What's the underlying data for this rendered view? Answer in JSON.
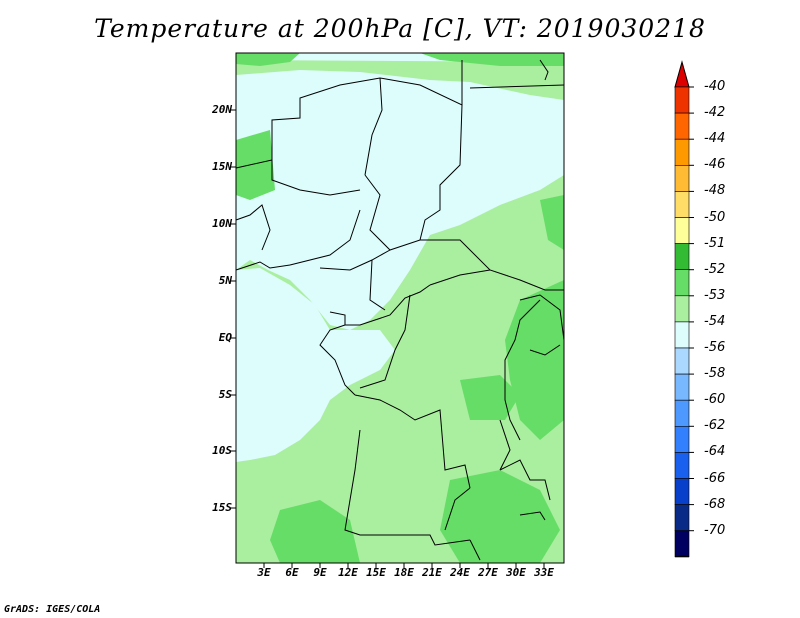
{
  "title": "Temperature at 200hPa [C], VT: 2019030218",
  "footer": "GrADS: IGES/COLA",
  "lat_ticks": [
    "20N",
    "15N",
    "10N",
    "5N",
    "EQ",
    "5S",
    "10S",
    "15S"
  ],
  "lon_ticks": [
    "3E",
    "6E",
    "9E",
    "12E",
    "15E",
    "18E",
    "21E",
    "24E",
    "27E",
    "30E",
    "33E"
  ],
  "colorbar": {
    "labels": [
      "-40",
      "-42",
      "-44",
      "-46",
      "-48",
      "-50",
      "-51",
      "-52",
      "-53",
      "-54",
      "-56",
      "-58",
      "-60",
      "-62",
      "-64",
      "-66",
      "-68",
      "-70"
    ],
    "colors": [
      "#dd0000",
      "#ee3300",
      "#ff6600",
      "#ff9900",
      "#ffbb33",
      "#ffdd66",
      "#ffff99",
      "#33bb33",
      "#66dd66",
      "#aaeea0",
      "#ddfcfc",
      "#aad8ff",
      "#77b8ff",
      "#4d99ff",
      "#3380ff",
      "#1a60ee",
      "#0840cc",
      "#0a2a88",
      "#000060",
      "#ddddf0"
    ]
  },
  "map": {
    "base_color": "#aaeea0",
    "cold_color": "#ddfcfc",
    "warm_color": "#66dd66"
  }
}
